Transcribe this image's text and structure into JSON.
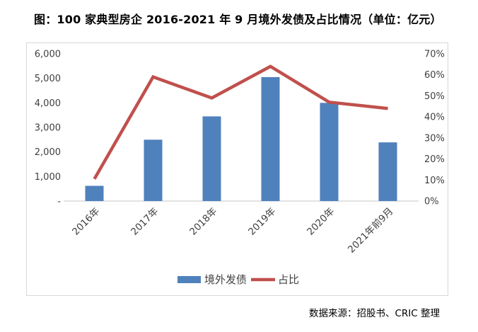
{
  "title": "图：100 家典型房企 2016-2021 年 9 月境外发债及占比情况（单位：亿元）",
  "source": "数据来源：招股书、CRIC 整理",
  "colors": {
    "bar": "#4F81BD",
    "line": "#C0504D",
    "axis_line": "#D9D9D9",
    "tick_text": "#404040",
    "title_text": "#000000"
  },
  "chart_data": {
    "type": "bar+line combo",
    "title": "图：100 家典型房企 2016-2021 年 9 月境外发债及占比情况（单位：亿元）",
    "categories": [
      "2016年",
      "2017年",
      "2018年",
      "2019年",
      "2020年",
      "2021年前9月"
    ],
    "series": [
      {
        "name": "境外发债",
        "type": "bar",
        "axis": "left",
        "unit": "亿元",
        "color": "#4F81BD",
        "values": [
          620,
          2500,
          3450,
          5050,
          4000,
          2390
        ]
      },
      {
        "name": "占比",
        "type": "line",
        "axis": "right",
        "unit": "%",
        "color": "#C0504D",
        "values": [
          10.5,
          59,
          49,
          64,
          47,
          44
        ]
      }
    ],
    "left_axis": {
      "min": 0,
      "max": 6000,
      "step": 1000,
      "tick_labels": [
        "-",
        "1,000",
        "2,000",
        "3,000",
        "4,000",
        "5,000",
        "6,000"
      ]
    },
    "right_axis": {
      "min": 0,
      "max": 70,
      "step": 10,
      "tick_labels": [
        "0%",
        "10%",
        "20%",
        "30%",
        "40%",
        "50%",
        "60%",
        "70%"
      ]
    },
    "grid": false,
    "legend_position": "bottom",
    "legend": [
      {
        "label": "境外发债",
        "swatch": "bar",
        "color": "#4F81BD"
      },
      {
        "label": "占比",
        "swatch": "line",
        "color": "#C0504D"
      }
    ]
  }
}
